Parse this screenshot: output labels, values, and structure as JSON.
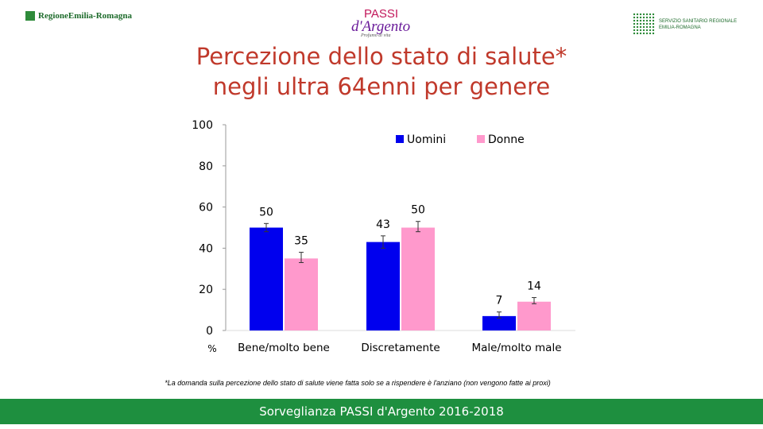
{
  "header": {
    "left_logo_text": "RegioneEmilia-Romagna",
    "center_logo": {
      "line1": "PASSI",
      "line2": "d'Argento",
      "tagline": "Profumo di vita"
    },
    "right_logo": {
      "line1": "SERVIZIO SANITARIO REGIONALE",
      "line2": "EMILIA-ROMAGNA"
    }
  },
  "title": {
    "line1": "Percezione dello stato di salute*",
    "line2": "negli ultra 64enni per genere"
  },
  "chart_data": {
    "type": "bar",
    "categories": [
      "Bene/molto bene",
      "Discretamente",
      "Male/molto male"
    ],
    "series": [
      {
        "name": "Uomini",
        "color": "#0000ee",
        "values": [
          50,
          43,
          7
        ],
        "labels": [
          "50",
          "43",
          "7"
        ],
        "ci_low": [
          48,
          40,
          6
        ],
        "ci_high": [
          52,
          46,
          9
        ]
      },
      {
        "name": "Donne",
        "color": "#ff99cc",
        "values": [
          35,
          50,
          14
        ],
        "labels": [
          "35",
          "50",
          "14"
        ],
        "ci_low": [
          33,
          48,
          13
        ],
        "ci_high": [
          38,
          53,
          16
        ]
      }
    ],
    "ylim": [
      0,
      100
    ],
    "yticks": [
      "0",
      "20",
      "40",
      "60",
      "80",
      "100"
    ],
    "ylabel": "%",
    "legend": "top-right"
  },
  "footnote": "*La domanda sulla percezione dello stato di salute viene fatta solo se a rispendere è l'anziano (non vengono fatte ai proxi)",
  "footer": "Sorveglianza PASSI d'Argento 2016-2018"
}
